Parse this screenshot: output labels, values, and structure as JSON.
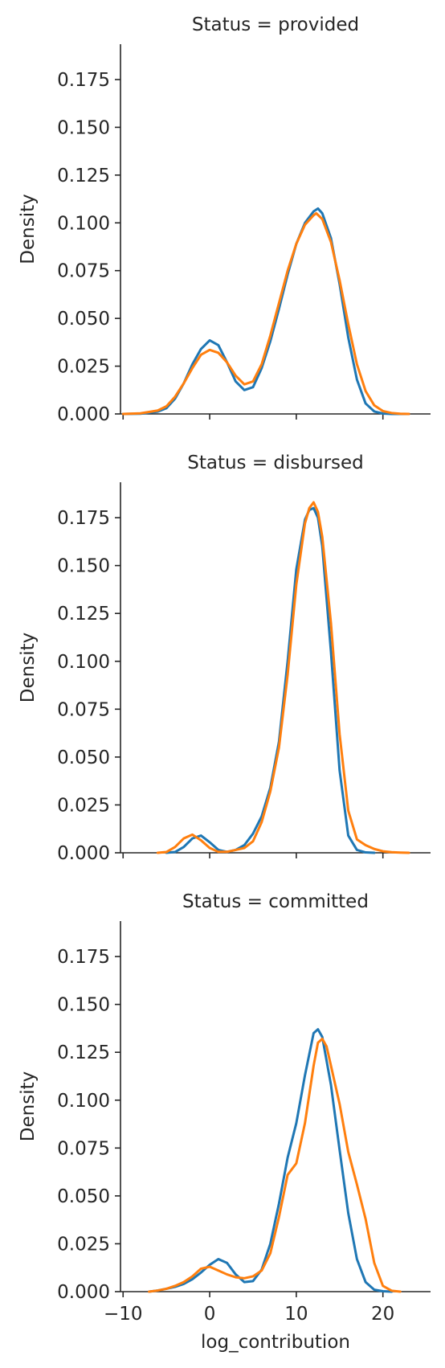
{
  "chart_data": [
    {
      "type": "line",
      "title": "Status = provided",
      "xlabel": "",
      "ylabel": "Density",
      "xlim": [
        -10.3,
        25.5
      ],
      "ylim": [
        0,
        0.1935
      ],
      "xticks": [
        -10,
        0,
        10,
        20
      ],
      "xtick_labels": [
        "",
        "",
        "",
        ""
      ],
      "yticks": [
        0,
        0.025,
        0.05,
        0.075,
        0.1,
        0.125,
        0.15,
        0.175
      ],
      "ytick_labels": [
        "0.000",
        "0.025",
        "0.050",
        "0.075",
        "0.100",
        "0.125",
        "0.150",
        "0.175"
      ],
      "series": [
        {
          "color": "#1f77b4",
          "x": [
            -10,
            -8,
            -6,
            -5,
            -4,
            -3,
            -2,
            -1,
            0,
            1,
            2,
            3,
            4,
            5,
            6,
            7,
            8,
            9,
            10,
            11,
            12,
            12.5,
            13,
            14,
            15,
            16,
            17,
            18,
            19,
            20,
            21,
            22,
            23
          ],
          "y": [
            0,
            0.0001,
            0.0012,
            0.003,
            0.008,
            0.016,
            0.026,
            0.034,
            0.0385,
            0.036,
            0.027,
            0.017,
            0.0125,
            0.014,
            0.024,
            0.038,
            0.055,
            0.073,
            0.089,
            0.1,
            0.106,
            0.1075,
            0.105,
            0.092,
            0.068,
            0.04,
            0.018,
            0.0055,
            0.0013,
            0.0002,
            0,
            0,
            0
          ]
        },
        {
          "color": "#ff7f0e",
          "x": [
            -10,
            -8,
            -6,
            -5,
            -4,
            -3,
            -2,
            -1,
            0,
            1,
            2,
            3,
            4,
            5,
            6,
            7,
            8,
            9,
            10,
            11,
            12,
            12.3,
            13,
            14,
            15,
            16,
            17,
            18,
            19,
            20,
            21,
            22,
            23
          ],
          "y": [
            0,
            0.0003,
            0.0018,
            0.004,
            0.009,
            0.016,
            0.024,
            0.031,
            0.0335,
            0.032,
            0.027,
            0.02,
            0.0155,
            0.017,
            0.026,
            0.041,
            0.058,
            0.075,
            0.089,
            0.099,
            0.104,
            0.105,
            0.102,
            0.09,
            0.07,
            0.047,
            0.026,
            0.012,
            0.0045,
            0.0015,
            0.0005,
            0.0001,
            0
          ]
        }
      ]
    },
    {
      "type": "line",
      "title": "Status = disbursed",
      "xlabel": "",
      "ylabel": "Density",
      "xlim": [
        -10.3,
        25.5
      ],
      "ylim": [
        0,
        0.1935
      ],
      "xticks": [
        -10,
        0,
        10,
        20
      ],
      "xtick_labels": [
        "",
        "",
        "",
        ""
      ],
      "yticks": [
        0,
        0.025,
        0.05,
        0.075,
        0.1,
        0.125,
        0.15,
        0.175
      ],
      "ytick_labels": [
        "0.000",
        "0.025",
        "0.050",
        "0.075",
        "0.100",
        "0.125",
        "0.150",
        "0.175"
      ],
      "series": [
        {
          "color": "#1f77b4",
          "x": [
            -5,
            -4,
            -3,
            -2,
            -1,
            0,
            1,
            2,
            3,
            4,
            5,
            6,
            7,
            8,
            9,
            10,
            11,
            11.5,
            12,
            12.5,
            13,
            14,
            15,
            16,
            17,
            18,
            19
          ],
          "y": [
            0,
            0.0004,
            0.003,
            0.0075,
            0.009,
            0.0055,
            0.0015,
            0.0005,
            0.0015,
            0.004,
            0.01,
            0.019,
            0.034,
            0.058,
            0.1,
            0.148,
            0.174,
            0.179,
            0.18,
            0.175,
            0.16,
            0.105,
            0.043,
            0.009,
            0.0015,
            0.0002,
            0
          ]
        },
        {
          "color": "#ff7f0e",
          "x": [
            -6,
            -5,
            -4,
            -3,
            -2,
            -1,
            0,
            1,
            2,
            3,
            4,
            5,
            6,
            7,
            8,
            9,
            10,
            11,
            11.5,
            12,
            12.5,
            13,
            14,
            15,
            16,
            17,
            18,
            19,
            20,
            21,
            22,
            23
          ],
          "y": [
            0,
            0.0004,
            0.003,
            0.0075,
            0.0095,
            0.0065,
            0.0025,
            0.0005,
            0.0005,
            0.0015,
            0.0025,
            0.006,
            0.016,
            0.032,
            0.055,
            0.093,
            0.14,
            0.172,
            0.18,
            0.183,
            0.178,
            0.165,
            0.12,
            0.062,
            0.022,
            0.007,
            0.004,
            0.002,
            0.0008,
            0.0003,
            0.0001,
            0
          ]
        }
      ]
    },
    {
      "type": "line",
      "title": "Status = committed",
      "xlabel": "log_contribution",
      "ylabel": "Density",
      "xlim": [
        -10.3,
        25.5
      ],
      "ylim": [
        0,
        0.1935
      ],
      "xticks": [
        -10,
        0,
        10,
        20
      ],
      "xtick_labels": [
        "−10",
        "0",
        "10",
        "20"
      ],
      "yticks": [
        0,
        0.025,
        0.05,
        0.075,
        0.1,
        0.125,
        0.15,
        0.175
      ],
      "ytick_labels": [
        "0.000",
        "0.025",
        "0.050",
        "0.075",
        "0.100",
        "0.125",
        "0.150",
        "0.175"
      ],
      "series": [
        {
          "color": "#1f77b4",
          "x": [
            -7,
            -6,
            -5,
            -4,
            -3,
            -2,
            -1,
            0,
            1,
            2,
            3,
            4,
            5,
            6,
            7,
            8,
            9,
            10,
            11,
            12,
            12.5,
            13,
            14,
            15,
            16,
            17,
            18,
            19,
            20,
            21
          ],
          "y": [
            0,
            0.0006,
            0.0015,
            0.0025,
            0.004,
            0.0065,
            0.01,
            0.014,
            0.017,
            0.015,
            0.009,
            0.005,
            0.0055,
            0.0115,
            0.025,
            0.046,
            0.07,
            0.088,
            0.113,
            0.135,
            0.137,
            0.133,
            0.108,
            0.074,
            0.041,
            0.017,
            0.005,
            0.001,
            0.0002,
            0
          ]
        },
        {
          "color": "#ff7f0e",
          "x": [
            -7,
            -6,
            -5,
            -4,
            -3,
            -2,
            -1,
            0,
            1,
            2,
            3,
            4,
            5,
            6,
            7,
            8,
            9,
            10,
            11,
            12,
            12.5,
            13,
            13.5,
            14,
            15,
            16,
            17,
            18,
            19,
            20,
            21,
            22
          ],
          "y": [
            0,
            0.0006,
            0.0015,
            0.003,
            0.005,
            0.008,
            0.012,
            0.013,
            0.011,
            0.009,
            0.0075,
            0.007,
            0.008,
            0.011,
            0.02,
            0.039,
            0.061,
            0.067,
            0.088,
            0.118,
            0.13,
            0.132,
            0.128,
            0.118,
            0.098,
            0.073,
            0.056,
            0.038,
            0.015,
            0.003,
            0.0005,
            0
          ]
        }
      ]
    }
  ]
}
